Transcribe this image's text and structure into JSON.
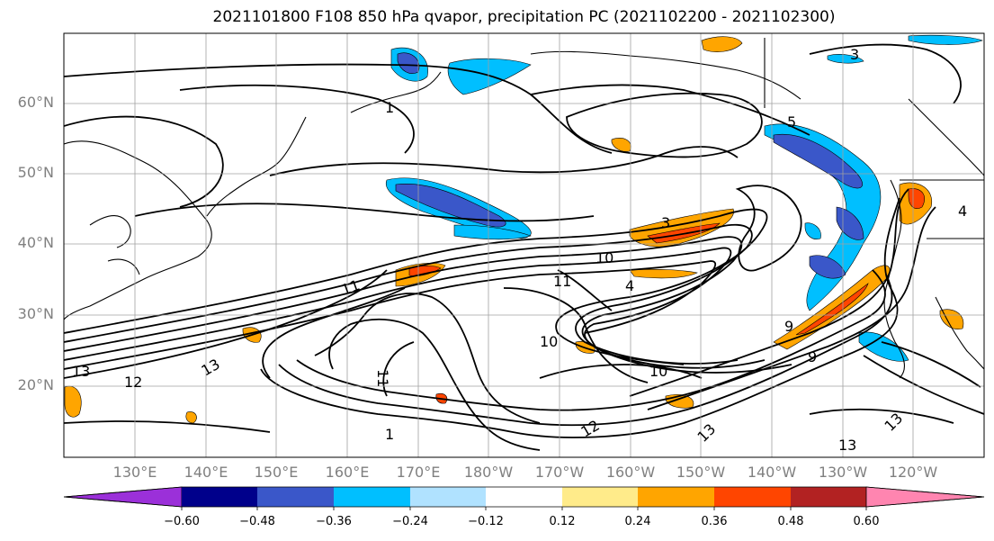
{
  "title": "2021101800 F108 850 hPa qvapor, precipitation PC (2021102200 - 2021102300)",
  "map": {
    "lat_labels": [
      "60°N",
      "50°N",
      "40°N",
      "30°N",
      "20°N"
    ],
    "lon_labels": [
      "130°E",
      "140°E",
      "150°E",
      "160°E",
      "170°E",
      "180°W",
      "170°W",
      "160°W",
      "150°W",
      "140°W",
      "130°W",
      "120°W"
    ],
    "contour_labels": [
      "3",
      "1",
      "13",
      "12",
      "13",
      "11",
      "11",
      "10",
      "11",
      "10",
      "9",
      "4",
      "3",
      "5",
      "10",
      "12",
      "13",
      "9",
      "13",
      "13",
      "1",
      "4"
    ]
  },
  "colorbar": {
    "ticks": [
      "−0.60",
      "−0.48",
      "−0.36",
      "−0.24",
      "−0.12",
      "0.12",
      "0.24",
      "0.36",
      "0.48",
      "0.60"
    ],
    "colors": [
      "#9b30d9",
      "#00008b",
      "#3a57c9",
      "#00bfff",
      "#b0e2ff",
      "#ffffff",
      "#ffeb8a",
      "#ffa500",
      "#ff4500",
      "#b22222",
      "#ff85b0"
    ]
  }
}
